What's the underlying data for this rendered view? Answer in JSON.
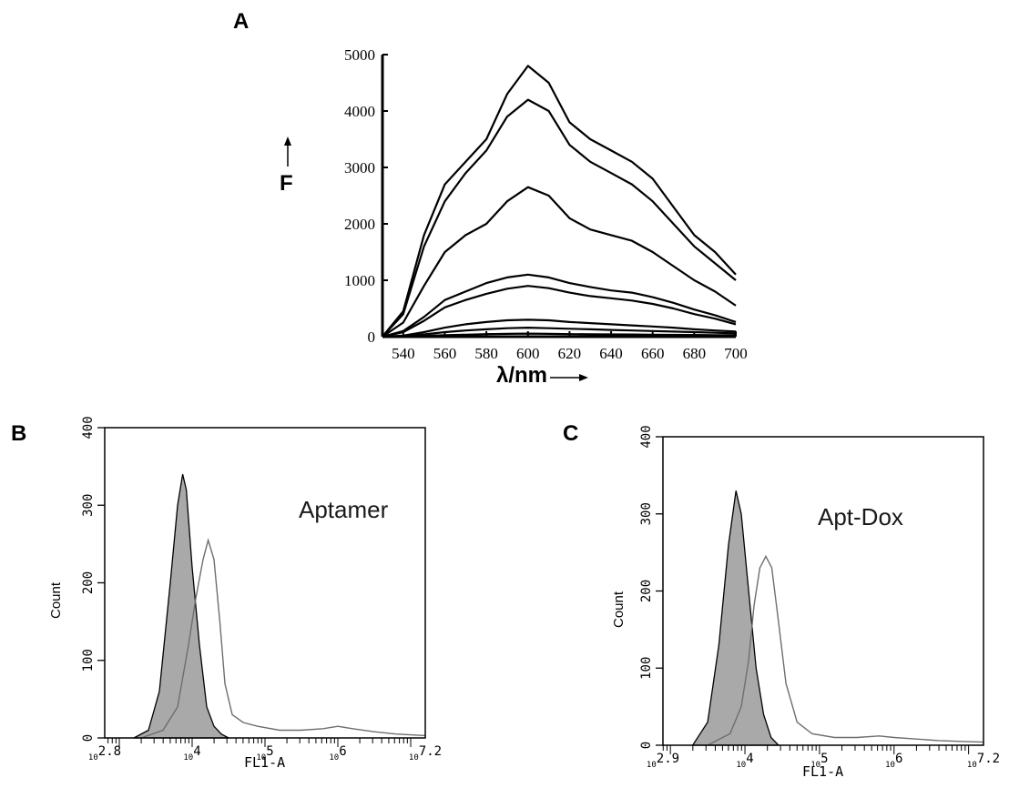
{
  "colors": {
    "ink": "#000000",
    "gate_fill": "#a9a9a9",
    "grey_line": "#6e6e6e",
    "axis_grey": "#555555"
  },
  "panels": [
    {
      "id": "A",
      "label": "A"
    },
    {
      "id": "B",
      "label": "B"
    },
    {
      "id": "C",
      "label": "C"
    }
  ],
  "chart_data": [
    {
      "panel": "A",
      "type": "line",
      "title": "",
      "xlabel": "λ/nm",
      "ylabel": "F",
      "xlim": [
        530,
        700
      ],
      "ylim": [
        0,
        5000
      ],
      "x_ticks": [
        540,
        560,
        580,
        600,
        620,
        640,
        660,
        680,
        700
      ],
      "y_ticks": [
        0,
        1000,
        2000,
        3000,
        4000,
        5000
      ],
      "grid": false,
      "x": [
        530,
        540,
        550,
        560,
        570,
        580,
        590,
        600,
        610,
        620,
        630,
        640,
        650,
        660,
        670,
        680,
        690,
        700
      ],
      "series": [
        {
          "values": [
            0,
            450,
            1800,
            2700,
            3100,
            3500,
            4300,
            4800,
            4500,
            3800,
            3500,
            3300,
            3100,
            2800,
            2300,
            1800,
            1500,
            1100
          ]
        },
        {
          "values": [
            0,
            400,
            1600,
            2400,
            2900,
            3300,
            3900,
            4200,
            4000,
            3400,
            3100,
            2900,
            2700,
            2400,
            2000,
            1600,
            1300,
            1000
          ]
        },
        {
          "values": [
            0,
            250,
            900,
            1500,
            1800,
            2000,
            2400,
            2650,
            2500,
            2100,
            1900,
            1800,
            1700,
            1500,
            1250,
            1000,
            800,
            550
          ]
        },
        {
          "values": [
            0,
            100,
            350,
            650,
            800,
            950,
            1050,
            1100,
            1050,
            950,
            880,
            820,
            780,
            700,
            600,
            480,
            380,
            260
          ]
        },
        {
          "values": [
            0,
            80,
            280,
            520,
            650,
            760,
            850,
            900,
            860,
            780,
            720,
            680,
            640,
            580,
            500,
            400,
            320,
            220
          ]
        },
        {
          "values": [
            0,
            20,
            80,
            160,
            220,
            260,
            290,
            300,
            290,
            260,
            240,
            220,
            200,
            180,
            160,
            130,
            110,
            90
          ]
        },
        {
          "values": [
            0,
            10,
            40,
            80,
            110,
            130,
            150,
            160,
            150,
            140,
            130,
            120,
            110,
            100,
            90,
            80,
            70,
            60
          ]
        },
        {
          "values": [
            0,
            5,
            15,
            25,
            35,
            45,
            50,
            55,
            50,
            45,
            42,
            40,
            38,
            35,
            32,
            30,
            28,
            25
          ]
        }
      ]
    },
    {
      "panel": "B",
      "type": "area",
      "annotation": "Aptamer",
      "xlabel": "FL1-A",
      "ylabel": "Count",
      "log_x": true,
      "xlim_exp": [
        2.8,
        7.2
      ],
      "ylim": [
        0,
        400
      ],
      "y_ticks": [
        0,
        100,
        200,
        300,
        400
      ],
      "x_tick_labels": [
        {
          "exp": 2.8,
          "base": "10",
          "power": "2.8"
        },
        {
          "exp": 4,
          "base": "10",
          "power": "4"
        },
        {
          "exp": 5,
          "base": "10",
          "power": "5"
        },
        {
          "exp": 6,
          "base": "10",
          "power": "6"
        },
        {
          "exp": 7.2,
          "base": "10",
          "power": "7.2"
        }
      ],
      "filled": {
        "log_x": [
          3.2,
          3.4,
          3.55,
          3.7,
          3.8,
          3.87,
          3.92,
          4.0,
          4.1,
          4.2,
          4.3,
          4.4,
          4.5
        ],
        "values": [
          0,
          10,
          60,
          200,
          300,
          340,
          320,
          220,
          120,
          40,
          15,
          5,
          0
        ]
      },
      "outline": {
        "log_x": [
          3.3,
          3.6,
          3.8,
          3.95,
          4.05,
          4.15,
          4.22,
          4.3,
          4.38,
          4.45,
          4.55,
          4.7,
          4.9,
          5.2,
          5.5,
          5.8,
          6.0,
          6.2,
          6.5,
          6.8,
          7.2
        ],
        "values": [
          0,
          10,
          40,
          120,
          180,
          230,
          255,
          230,
          150,
          70,
          30,
          20,
          15,
          10,
          10,
          12,
          15,
          12,
          8,
          5,
          3
        ]
      }
    },
    {
      "panel": "C",
      "type": "area",
      "annotation": "Apt-Dox",
      "xlabel": "FL1-A",
      "ylabel": "Count",
      "log_x": true,
      "xlim_exp": [
        2.9,
        7.2
      ],
      "ylim": [
        0,
        400
      ],
      "y_ticks": [
        0,
        100,
        200,
        300,
        400
      ],
      "x_tick_labels": [
        {
          "exp": 2.9,
          "base": "10",
          "power": "2.9"
        },
        {
          "exp": 4,
          "base": "10",
          "power": "4"
        },
        {
          "exp": 5,
          "base": "10",
          "power": "5"
        },
        {
          "exp": 6,
          "base": "10",
          "power": "6"
        },
        {
          "exp": 7.2,
          "base": "10",
          "power": "7.2"
        }
      ],
      "filled": {
        "log_x": [
          3.3,
          3.5,
          3.65,
          3.78,
          3.88,
          3.95,
          4.05,
          4.15,
          4.25,
          4.35,
          4.45
        ],
        "values": [
          0,
          30,
          130,
          260,
          330,
          300,
          200,
          100,
          40,
          10,
          0
        ]
      },
      "outline": {
        "log_x": [
          3.5,
          3.8,
          3.95,
          4.05,
          4.12,
          4.2,
          4.28,
          4.36,
          4.45,
          4.55,
          4.7,
          4.9,
          5.2,
          5.5,
          5.8,
          6.0,
          6.3,
          6.6,
          6.9,
          7.2
        ],
        "values": [
          0,
          15,
          50,
          110,
          180,
          230,
          245,
          230,
          160,
          80,
          30,
          15,
          10,
          10,
          12,
          10,
          8,
          6,
          5,
          4
        ]
      }
    }
  ]
}
